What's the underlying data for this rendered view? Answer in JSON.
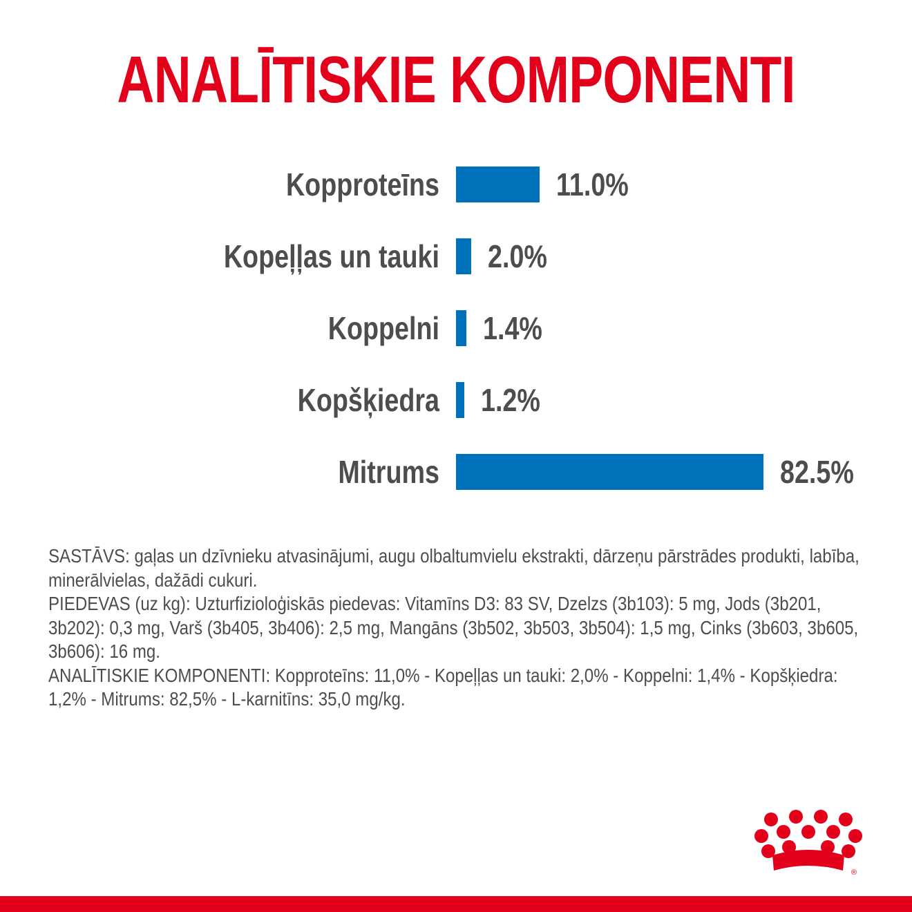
{
  "title": "ANALĪTISKIE KOMPONENTI",
  "colors": {
    "title": "#e2001a",
    "label": "#4d4d4d",
    "bar": "#0072bc",
    "value": "#4d4d4d",
    "brand_red": "#e2001a"
  },
  "chart_data": {
    "type": "bar",
    "orientation": "horizontal",
    "categories": [
      "Kopproteīns",
      "Kopeļļas un tauki",
      "Koppelni",
      "Kopšķiedra",
      "Mitrums"
    ],
    "values": [
      11.0,
      2.0,
      1.4,
      1.2,
      82.5
    ],
    "value_labels": [
      "11.0%",
      "2.0%",
      "1.4%",
      "1.2%",
      "82.5%"
    ],
    "unit": "%",
    "xlim": [
      0,
      100
    ],
    "grid": false,
    "legend": "none"
  },
  "composition": {
    "paragraphs": [
      "SASTĀVS: gaļas un dzīvnieku atvasinājumi, augu olbaltumvielu ekstrakti, dārzeņu pārstrādes produkti, labība, minerālvielas, dažādi cukuri.",
      "PIEDEVAS (uz kg): Uzturfizioloģiskās piedevas: Vitamīns D3: 83 SV, Dzelzs (3b103): 5 mg, Jods (3b201, 3b202): 0,3 mg, Varš (3b405, 3b406): 2,5 mg, Mangāns (3b502, 3b503, 3b504): 1,5 mg, Cinks (3b603, 3b605, 3b606): 16 mg.",
      "ANALĪTISKIE KOMPONENTI: Kopproteīns: 11,0% - Kopeļļas un tauki: 2,0% - Koppelni: 1,4% - Kopšķiedra: 1,2% - Mitrums: 82,5% - L-karnitīns: 35,0 mg/kg."
    ]
  },
  "logo": {
    "icon": "crown-icon",
    "registered_mark": "®"
  }
}
